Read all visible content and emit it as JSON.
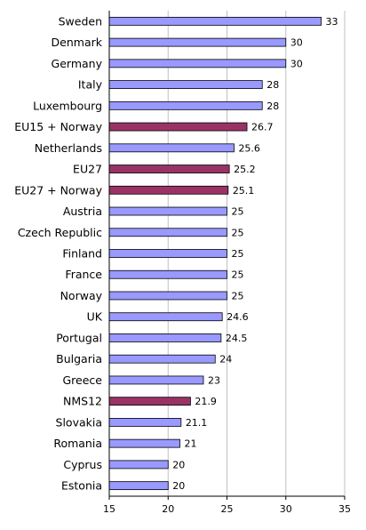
{
  "chart_data": {
    "type": "bar",
    "orientation": "horizontal",
    "categories": [
      "Sweden",
      "Denmark",
      "Germany",
      "Italy",
      "Luxembourg",
      "EU15 + Norway",
      "Netherlands",
      "EU27",
      "EU27 + Norway",
      "Austria",
      "Czech Republic",
      "Finland",
      "France",
      "Norway",
      "UK",
      "Portugal",
      "Bulgaria",
      "Greece",
      "NMS12",
      "Slovakia",
      "Romania",
      "Cyprus",
      "Estonia"
    ],
    "values": [
      33,
      30,
      30,
      28,
      28,
      26.7,
      25.6,
      25.2,
      25.1,
      25,
      25,
      25,
      25,
      25,
      24.6,
      24.5,
      24,
      23,
      21.9,
      21.1,
      21,
      20,
      20
    ],
    "value_labels": [
      "33",
      "30",
      "30",
      "28",
      "28",
      "26.7",
      "25.6",
      "25.2",
      "25.1",
      "25",
      "25",
      "25",
      "25",
      "25",
      "24.6",
      "24.5",
      "24",
      "23",
      "21.9",
      "21.1",
      "21",
      "20",
      "20"
    ],
    "highlighted": [
      "EU15 + Norway",
      "EU27",
      "EU27 + Norway",
      "NMS12"
    ],
    "xlim": [
      15,
      35
    ],
    "x_ticks": [
      15,
      20,
      25,
      30,
      35
    ],
    "tick_labels": [
      "15",
      "20",
      "25",
      "30",
      "35"
    ],
    "title": "",
    "xlabel": "",
    "ylabel": "",
    "grid": "vertical",
    "legend": "none",
    "colors": {
      "bar": "#9999ff",
      "highlight": "#993366",
      "bar_edge": "#000000",
      "grid": "#c0c0c0",
      "axis": "#000000"
    }
  }
}
